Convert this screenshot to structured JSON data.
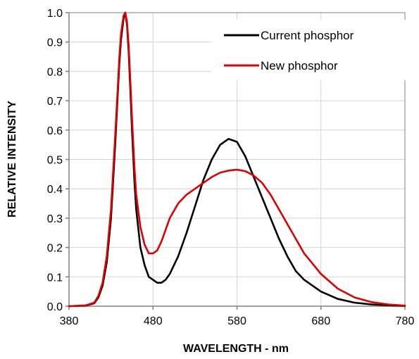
{
  "chart_data": {
    "type": "line",
    "title": "",
    "xlabel": "WAVELENGTH  - nm",
    "ylabel": "RELATIVE  INTENSITY",
    "xlim": [
      380,
      780
    ],
    "ylim": [
      0,
      1.0
    ],
    "x_ticks": [
      380,
      480,
      580,
      680,
      780
    ],
    "x_tick_labels": [
      "380",
      "480",
      "580",
      "680",
      "780"
    ],
    "y_ticks": [
      0,
      0.1,
      0.2,
      0.3,
      0.4,
      0.5,
      0.6,
      0.7,
      0.8,
      0.9,
      1.0
    ],
    "y_tick_labels": [
      "0.0",
      "0.1",
      "0.2",
      "0.3",
      "0.4",
      "0.5",
      "0.6",
      "0.7",
      "0.8",
      "0.9",
      "1.0"
    ],
    "grid": true,
    "legend_position": "top-right",
    "x": [
      380,
      400,
      410,
      415,
      420,
      425,
      430,
      435,
      438,
      440,
      442,
      445,
      447,
      449,
      451,
      453,
      455,
      458,
      460,
      465,
      470,
      475,
      480,
      485,
      490,
      495,
      500,
      510,
      520,
      530,
      540,
      550,
      560,
      570,
      580,
      590,
      600,
      610,
      620,
      630,
      640,
      650,
      660,
      680,
      700,
      720,
      740,
      760,
      780
    ],
    "series": [
      {
        "name": "Current phosphor",
        "color": "#000000",
        "values": [
          0,
          0.002,
          0.01,
          0.03,
          0.07,
          0.15,
          0.3,
          0.55,
          0.72,
          0.83,
          0.91,
          0.98,
          1.0,
          0.96,
          0.87,
          0.74,
          0.6,
          0.42,
          0.33,
          0.2,
          0.14,
          0.1,
          0.09,
          0.08,
          0.08,
          0.09,
          0.11,
          0.17,
          0.25,
          0.34,
          0.43,
          0.5,
          0.55,
          0.57,
          0.56,
          0.51,
          0.44,
          0.37,
          0.3,
          0.23,
          0.17,
          0.12,
          0.09,
          0.05,
          0.025,
          0.012,
          0.006,
          0.003,
          0.001
        ]
      },
      {
        "name": "New phosphor",
        "color": "#e00000",
        "values": [
          0,
          0.003,
          0.012,
          0.035,
          0.08,
          0.17,
          0.33,
          0.58,
          0.74,
          0.85,
          0.93,
          0.99,
          1.0,
          0.97,
          0.89,
          0.77,
          0.64,
          0.47,
          0.38,
          0.27,
          0.21,
          0.18,
          0.18,
          0.19,
          0.22,
          0.26,
          0.3,
          0.35,
          0.38,
          0.4,
          0.42,
          0.44,
          0.455,
          0.462,
          0.465,
          0.46,
          0.445,
          0.42,
          0.38,
          0.33,
          0.28,
          0.23,
          0.18,
          0.11,
          0.06,
          0.03,
          0.014,
          0.006,
          0.002
        ]
      }
    ]
  }
}
